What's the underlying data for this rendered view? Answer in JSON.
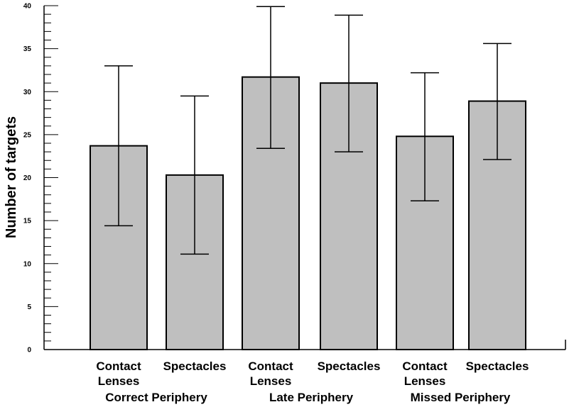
{
  "chart_data": {
    "type": "bar",
    "title": "",
    "xlabel": "",
    "ylabel": "Number of targets",
    "ylim": [
      0,
      40
    ],
    "yticks": [
      0,
      5,
      10,
      15,
      20,
      25,
      30,
      35,
      40
    ],
    "grid": false,
    "legend": "none",
    "bar_color": "#bfbfbf",
    "bars": [
      {
        "label_line1": "Contact",
        "label_line2": "Lenses",
        "group": "Correct Periphery",
        "value": 23.7,
        "err_low": 14.4,
        "err_high": 33.0
      },
      {
        "label_line1": "Spectacles",
        "label_line2": "",
        "group": "Correct Periphery",
        "value": 20.3,
        "err_low": 11.1,
        "err_high": 29.5
      },
      {
        "label_line1": "Contact",
        "label_line2": "Lenses",
        "group": "Late Periphery",
        "value": 31.7,
        "err_low": 23.4,
        "err_high": 39.9
      },
      {
        "label_line1": "Spectacles",
        "label_line2": "",
        "group": "Late Periphery",
        "value": 31.0,
        "err_low": 23.0,
        "err_high": 38.9
      },
      {
        "label_line1": "Contact",
        "label_line2": "Lenses",
        "group": "Missed Periphery",
        "value": 24.8,
        "err_low": 17.3,
        "err_high": 32.2
      },
      {
        "label_line1": "Spectacles",
        "label_line2": "",
        "group": "Missed Periphery",
        "value": 28.9,
        "err_low": 22.1,
        "err_high": 35.6
      }
    ],
    "groups": [
      "Correct Periphery",
      "Late Periphery",
      "Missed Periphery"
    ]
  }
}
